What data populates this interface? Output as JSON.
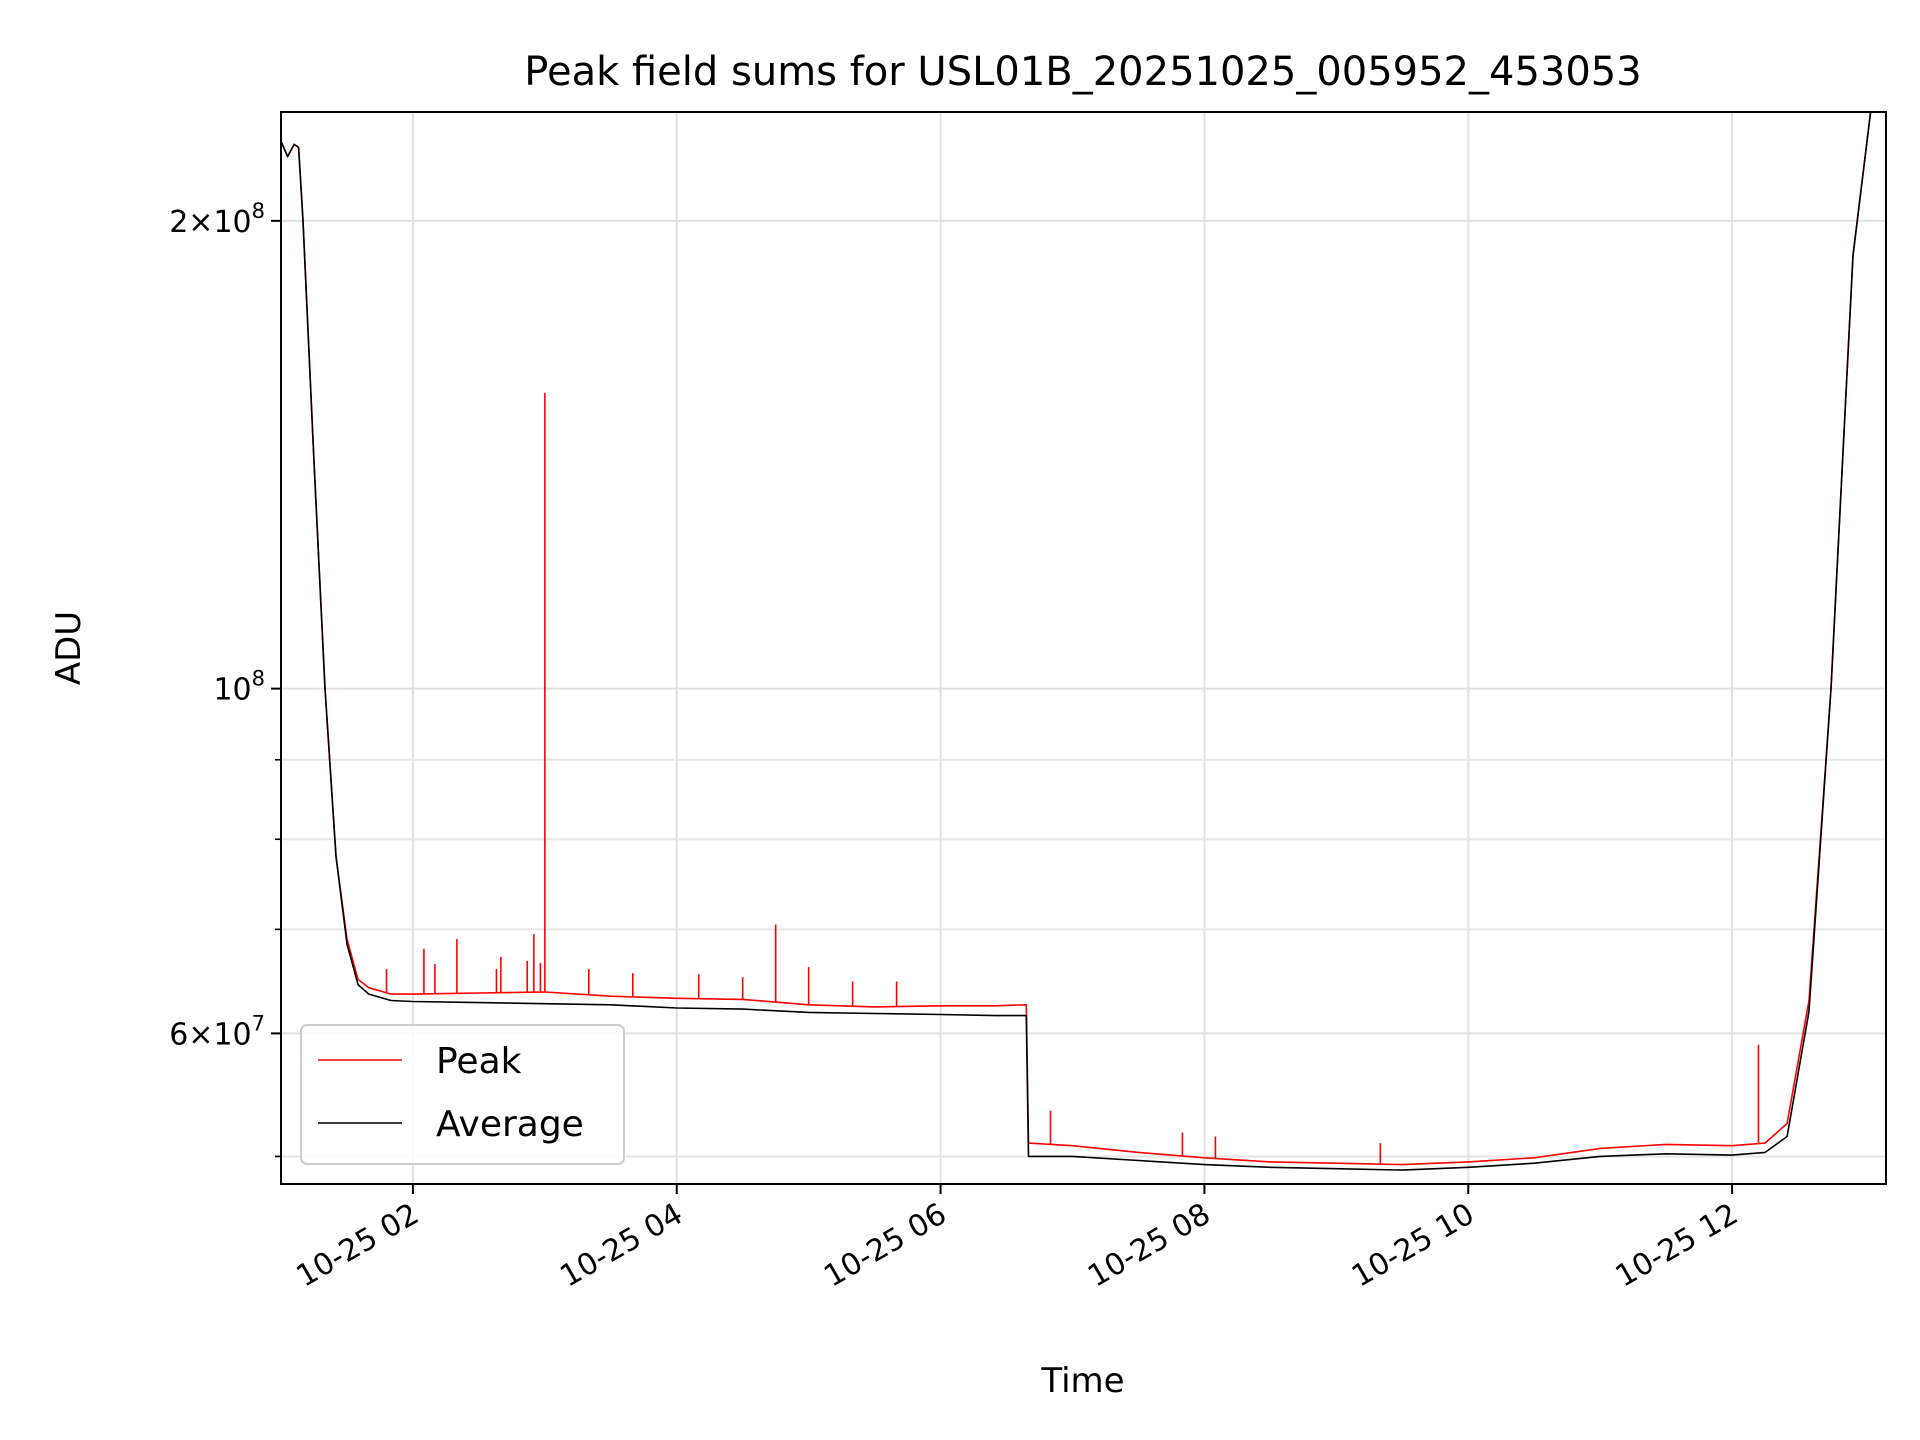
{
  "chart_data": {
    "type": "line",
    "title": "Peak field sums for USL01B_20251025_005952_453053",
    "xlabel": "Time",
    "ylabel": "ADU",
    "yscale": "log",
    "xlim": [
      "2025-10-25 01:00",
      "2025-10-25 13:10"
    ],
    "ylim": [
      48000000,
      235000000
    ],
    "grid": true,
    "legend_position": "lower-left",
    "x_ticks": [
      {
        "value": "2025-10-25 02:00",
        "label": "10-25 02"
      },
      {
        "value": "2025-10-25 04:00",
        "label": "10-25 04"
      },
      {
        "value": "2025-10-25 06:00",
        "label": "10-25 06"
      },
      {
        "value": "2025-10-25 08:00",
        "label": "10-25 08"
      },
      {
        "value": "2025-10-25 10:00",
        "label": "10-25 10"
      },
      {
        "value": "2025-10-25 12:00",
        "label": "10-25 12"
      }
    ],
    "y_ticks": [
      {
        "value": 60000000,
        "label": "6×10",
        "exp": "7"
      },
      {
        "value": 100000000,
        "label": "10",
        "exp": "8"
      },
      {
        "value": 200000000,
        "label": "2×10",
        "exp": "8"
      }
    ],
    "y_minor_ticks": [
      50000000,
      70000000,
      80000000,
      90000000
    ],
    "series": [
      {
        "name": "Peak",
        "color": "#ff0000",
        "x": [
          "2025-10-25 01:00",
          "2025-10-25 01:03",
          "2025-10-25 01:06",
          "2025-10-25 01:08",
          "2025-10-25 01:10",
          "2025-10-25 01:15",
          "2025-10-25 01:20",
          "2025-10-25 01:25",
          "2025-10-25 01:30",
          "2025-10-25 01:35",
          "2025-10-25 01:40",
          "2025-10-25 01:50",
          "2025-10-25 02:00",
          "2025-10-25 02:30",
          "2025-10-25 03:00",
          "2025-10-25 03:30",
          "2025-10-25 04:00",
          "2025-10-25 04:30",
          "2025-10-25 05:00",
          "2025-10-25 05:30",
          "2025-10-25 06:00",
          "2025-10-25 06:25",
          "2025-10-25 06:39",
          "2025-10-25 06:40",
          "2025-10-25 07:00",
          "2025-10-25 07:30",
          "2025-10-25 08:00",
          "2025-10-25 08:30",
          "2025-10-25 09:00",
          "2025-10-25 09:30",
          "2025-10-25 10:00",
          "2025-10-25 10:30",
          "2025-10-25 11:00",
          "2025-10-25 11:30",
          "2025-10-25 12:00",
          "2025-10-25 12:15",
          "2025-10-25 12:25",
          "2025-10-25 12:35",
          "2025-10-25 12:45",
          "2025-10-25 12:55",
          "2025-10-25 13:03",
          "2025-10-25 13:10"
        ],
        "values": [
          225000000,
          220000000,
          224000000,
          223000000,
          200000000,
          140000000,
          100000000,
          78000000,
          69000000,
          65000000,
          64200000,
          63600000,
          63600000,
          63700000,
          63800000,
          63400000,
          63200000,
          63100000,
          62600000,
          62400000,
          62500000,
          62500000,
          62600000,
          51000000,
          50800000,
          50300000,
          49900000,
          49600000,
          49500000,
          49400000,
          49600000,
          49900000,
          50600000,
          50900000,
          50800000,
          51000000,
          52500000,
          63000000,
          100000000,
          190000000,
          235000000,
          235000000
        ],
        "spikes": [
          {
            "x": "2025-10-25 01:48",
            "value": 66000000
          },
          {
            "x": "2025-10-25 02:05",
            "value": 68000000
          },
          {
            "x": "2025-10-25 02:10",
            "value": 66500000
          },
          {
            "x": "2025-10-25 02:20",
            "value": 69000000
          },
          {
            "x": "2025-10-25 02:38",
            "value": 66000000
          },
          {
            "x": "2025-10-25 02:40",
            "value": 67200000
          },
          {
            "x": "2025-10-25 02:52",
            "value": 66800000
          },
          {
            "x": "2025-10-25 02:55",
            "value": 69500000
          },
          {
            "x": "2025-10-25 02:58",
            "value": 66600000
          },
          {
            "x": "2025-10-25 03:00",
            "value": 155000000
          },
          {
            "x": "2025-10-25 03:20",
            "value": 66000000
          },
          {
            "x": "2025-10-25 03:40",
            "value": 65600000
          },
          {
            "x": "2025-10-25 04:10",
            "value": 65500000
          },
          {
            "x": "2025-10-25 04:30",
            "value": 65200000
          },
          {
            "x": "2025-10-25 04:45",
            "value": 70500000
          },
          {
            "x": "2025-10-25 05:00",
            "value": 66200000
          },
          {
            "x": "2025-10-25 05:20",
            "value": 64800000
          },
          {
            "x": "2025-10-25 05:40",
            "value": 64800000
          },
          {
            "x": "2025-10-25 06:50",
            "value": 53500000
          },
          {
            "x": "2025-10-25 07:50",
            "value": 51800000
          },
          {
            "x": "2025-10-25 08:05",
            "value": 51500000
          },
          {
            "x": "2025-10-25 09:20",
            "value": 51000000
          },
          {
            "x": "2025-10-25 12:12",
            "value": 59000000
          }
        ]
      },
      {
        "name": "Average",
        "color": "#000000",
        "x": [
          "2025-10-25 01:00",
          "2025-10-25 01:03",
          "2025-10-25 01:06",
          "2025-10-25 01:08",
          "2025-10-25 01:10",
          "2025-10-25 01:15",
          "2025-10-25 01:20",
          "2025-10-25 01:25",
          "2025-10-25 01:30",
          "2025-10-25 01:35",
          "2025-10-25 01:40",
          "2025-10-25 01:50",
          "2025-10-25 02:00",
          "2025-10-25 02:30",
          "2025-10-25 03:00",
          "2025-10-25 03:30",
          "2025-10-25 04:00",
          "2025-10-25 04:30",
          "2025-10-25 05:00",
          "2025-10-25 05:30",
          "2025-10-25 06:00",
          "2025-10-25 06:25",
          "2025-10-25 06:39",
          "2025-10-25 06:40",
          "2025-10-25 07:00",
          "2025-10-25 07:30",
          "2025-10-25 08:00",
          "2025-10-25 08:30",
          "2025-10-25 09:00",
          "2025-10-25 09:30",
          "2025-10-25 10:00",
          "2025-10-25 10:30",
          "2025-10-25 11:00",
          "2025-10-25 11:30",
          "2025-10-25 12:00",
          "2025-10-25 12:15",
          "2025-10-25 12:25",
          "2025-10-25 12:35",
          "2025-10-25 12:45",
          "2025-10-25 12:55",
          "2025-10-25 13:03",
          "2025-10-25 13:10"
        ],
        "values": [
          225000000,
          220000000,
          224000000,
          223000000,
          200000000,
          140000000,
          100000000,
          78000000,
          68500000,
          64500000,
          63600000,
          63000000,
          62900000,
          62800000,
          62700000,
          62600000,
          62300000,
          62200000,
          61900000,
          61800000,
          61700000,
          61600000,
          61600000,
          50000000,
          50000000,
          49700000,
          49400000,
          49200000,
          49100000,
          49000000,
          49200000,
          49500000,
          50000000,
          50200000,
          50100000,
          50300000,
          51500000,
          62000000,
          100000000,
          190000000,
          235000000,
          235000000
        ]
      }
    ]
  }
}
